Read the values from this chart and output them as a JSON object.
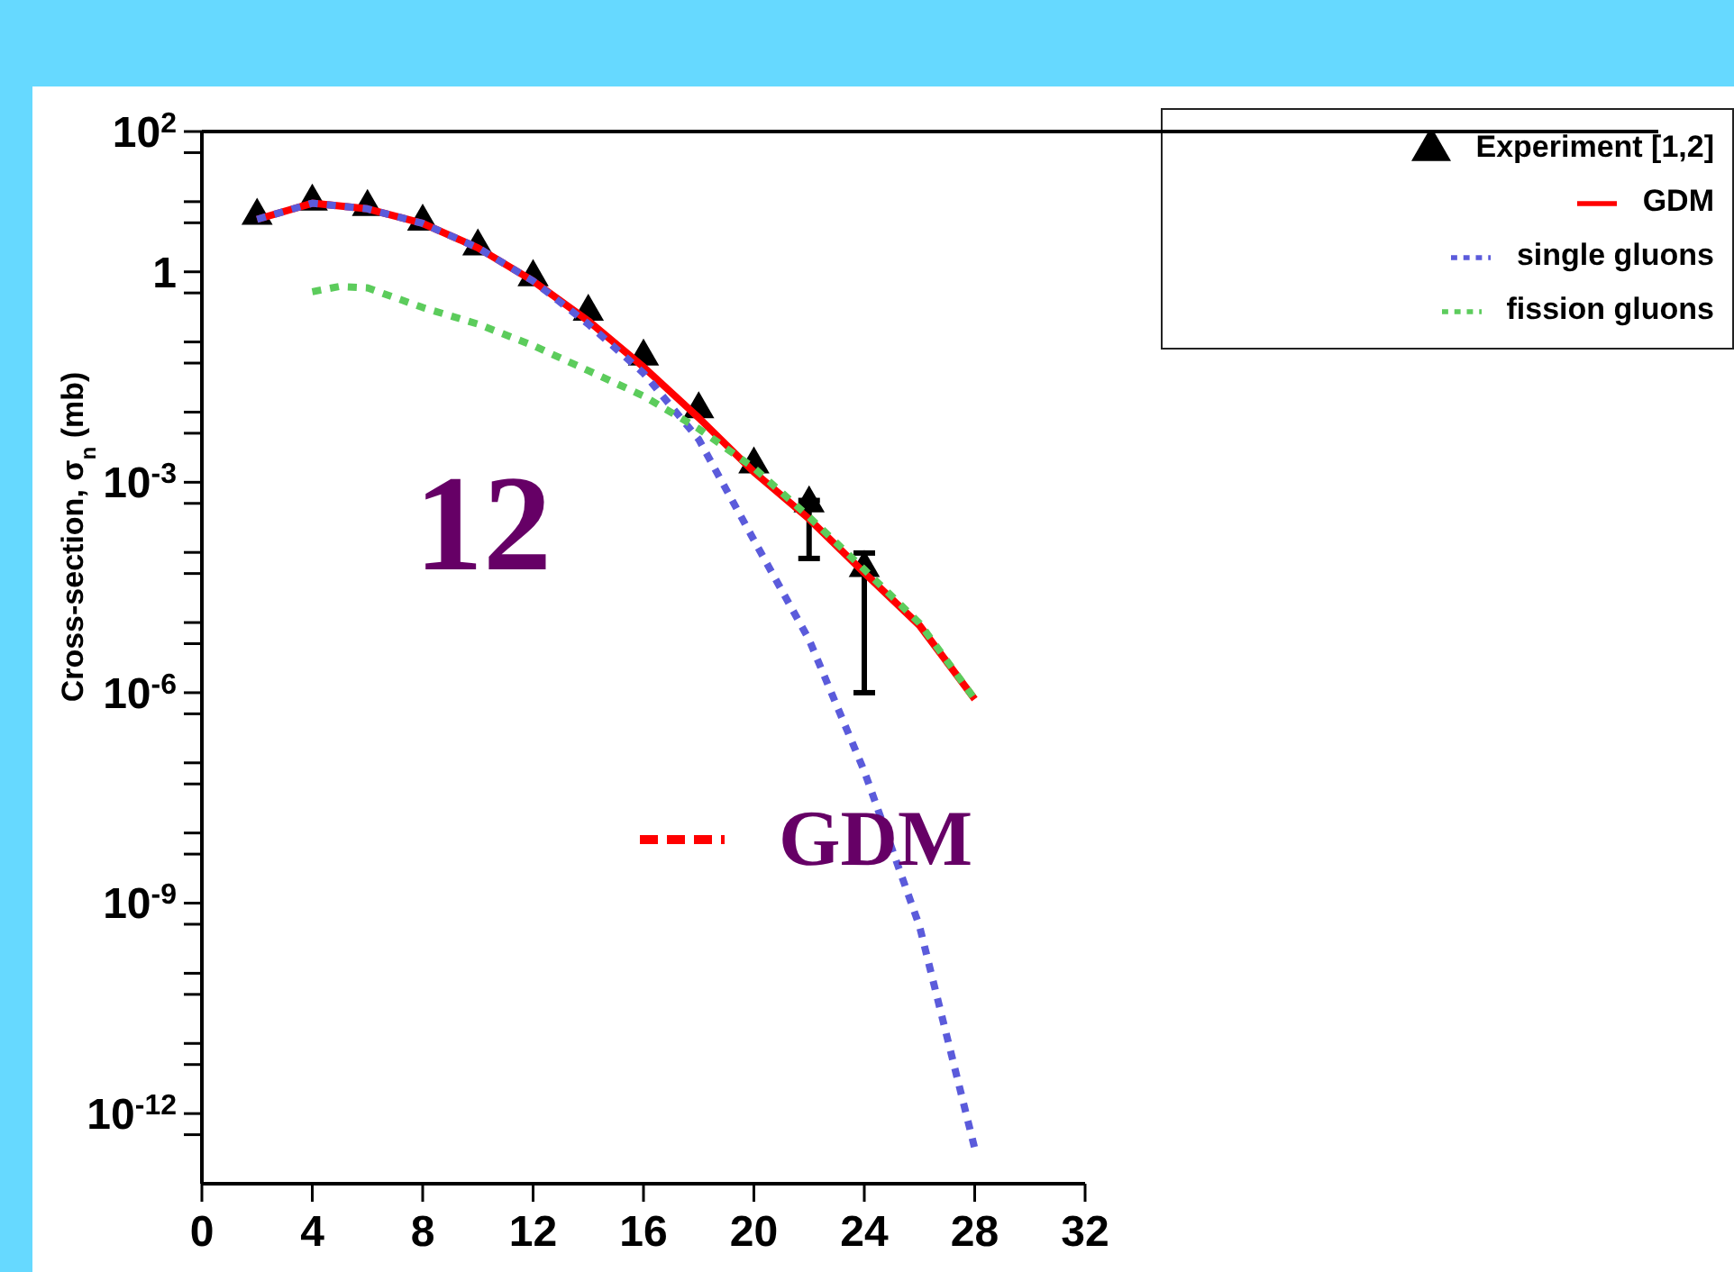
{
  "chart_data": {
    "type": "line",
    "ylabel": "Cross-section, σ$_{n}$ (mb)",
    "log": "y",
    "xlim": [
      0,
      32
    ],
    "xticks": [
      0,
      4,
      8,
      12,
      16,
      20,
      24,
      28,
      32
    ],
    "ylim": [
      1e-13,
      100
    ],
    "yticks": [
      {
        "value": 100,
        "label": "10$^{2}$"
      },
      {
        "value": 50,
        "label": null
      },
      {
        "value": 10,
        "label": null
      },
      {
        "value": 5,
        "label": null
      },
      {
        "value": 1,
        "label": "1"
      },
      {
        "value": 0.5,
        "label": null
      },
      {
        "value": 0.1,
        "label": null
      },
      {
        "value": 0.05,
        "label": null
      },
      {
        "value": 0.01,
        "label": null
      },
      {
        "value": 0.005,
        "label": null
      },
      {
        "value": 0.001,
        "label": "10$^{-3}$"
      },
      {
        "value": 0.0005,
        "label": null
      },
      {
        "value": 0.0001,
        "label": null
      },
      {
        "value": 5e-05,
        "label": null
      },
      {
        "value": 1e-05,
        "label": null
      },
      {
        "value": 5e-06,
        "label": null
      },
      {
        "value": 1e-06,
        "label": "10$^{-6}$"
      },
      {
        "value": 5e-07,
        "label": null
      },
      {
        "value": 1e-07,
        "label": null
      },
      {
        "value": 5e-08,
        "label": null
      },
      {
        "value": 1e-08,
        "label": null
      },
      {
        "value": 5e-09,
        "label": null
      },
      {
        "value": 1e-09,
        "label": "10$^{-9}$"
      },
      {
        "value": 5e-10,
        "label": null
      },
      {
        "value": 1e-10,
        "label": null
      },
      {
        "value": 5e-11,
        "label": null
      },
      {
        "value": 1e-11,
        "label": null
      },
      {
        "value": 5e-12,
        "label": null
      },
      {
        "value": 1e-12,
        "label": "10$^{-12}$"
      },
      {
        "value": 5e-13,
        "label": null
      }
    ],
    "legend": "top right",
    "grid": false,
    "annotations": [
      "12",
      "GDM"
    ],
    "series": [
      {
        "name": "Experiment [1,2]",
        "type": "scatter",
        "marker": "triangle",
        "color": "#000000",
        "x": [
          2,
          4,
          6,
          8,
          10,
          12,
          14,
          16,
          18,
          20,
          22,
          24
        ],
        "values": [
          6.3,
          10,
          8.4,
          5.2,
          2.3,
          0.84,
          0.27,
          0.062,
          0.011,
          0.0018,
          0.0005,
          6e-05
        ],
        "errors": [
          null,
          null,
          null,
          null,
          null,
          null,
          null,
          null,
          null,
          null,
          [
            8.2e-05,
            0.00055
          ],
          [
            1e-06,
            9.8e-05
          ]
        ]
      },
      {
        "name": "GDM",
        "type": "line",
        "marker": "none",
        "line_style": "solid",
        "color": "#ff0000",
        "x": [
          2,
          4,
          6,
          8,
          10,
          12,
          14,
          16,
          18,
          20,
          22,
          24,
          26,
          28
        ],
        "values": [
          5.6,
          9.5,
          7.9,
          4.9,
          2.2,
          0.74,
          0.2,
          0.044,
          0.0083,
          0.0014,
          0.0003,
          5.1e-05,
          9.1e-06,
          8.1e-07
        ]
      },
      {
        "name": "single gluons",
        "type": "line",
        "marker": "none",
        "line_style": "dotted",
        "color": "#5b5bdb",
        "x": [
          2,
          4,
          6,
          8,
          10,
          12,
          14,
          16,
          18,
          20,
          22,
          24,
          26,
          28
        ],
        "values": [
          5.6,
          9.5,
          7.9,
          4.9,
          2.2,
          0.74,
          0.18,
          0.036,
          0.0041,
          0.00015,
          5.7e-06,
          7.6e-08,
          4.7e-10,
          3.2e-13
        ]
      },
      {
        "name": "fission gluons",
        "type": "line",
        "marker": "none",
        "line_style": "dotted",
        "color": "#5ccc5c",
        "x": [
          4,
          5,
          6,
          8,
          10,
          12,
          14,
          16,
          18,
          20,
          22,
          24,
          26,
          28
        ],
        "values": [
          0.52,
          0.62,
          0.59,
          0.31,
          0.18,
          0.089,
          0.039,
          0.017,
          0.0058,
          0.0016,
          0.00032,
          5.7e-05,
          9.8e-06,
          8.1e-07
        ]
      }
    ]
  }
}
